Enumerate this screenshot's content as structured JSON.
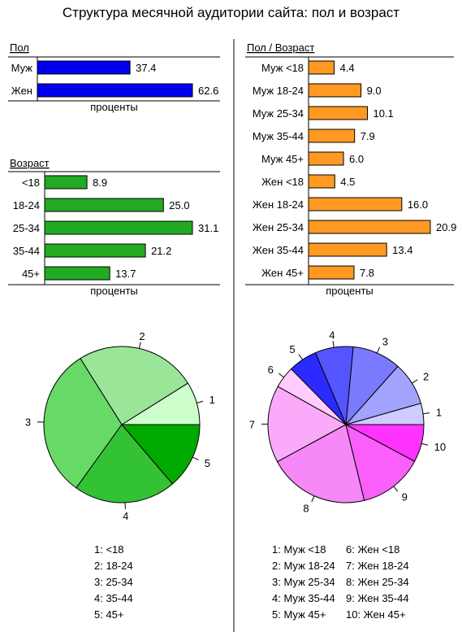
{
  "title": "Структура месячной аудитории сайта: пол и возраст",
  "axis_unit": "проценты",
  "colors": {
    "gender_bar": "#0000ee",
    "age_bar": "#22aa22",
    "gender_age_bar": "#ff9922",
    "age_pie": [
      "#ccffcc",
      "#99e699",
      "#66d966",
      "#33c233",
      "#00aa00"
    ],
    "gender_age_pie": [
      "#ccccff",
      "#a3a3ff",
      "#7a7aff",
      "#5555ff",
      "#2b2bff",
      "#ffccff",
      "#f9aaf9",
      "#f788f7",
      "#fb5ffb",
      "#ff33ff"
    ]
  },
  "chart_data": [
    {
      "type": "bar",
      "orientation": "horizontal",
      "title": "Пол",
      "xlabel": "проценты",
      "categories": [
        "Муж",
        "Жен"
      ],
      "values": [
        37.4,
        62.6
      ],
      "xlim": [
        0,
        62.6
      ]
    },
    {
      "type": "bar",
      "orientation": "horizontal",
      "title": "Возраст",
      "xlabel": "проценты",
      "categories": [
        "<18",
        "18-24",
        "25-34",
        "35-44",
        "45+"
      ],
      "values": [
        8.9,
        25.0,
        31.1,
        21.2,
        13.7
      ],
      "xlim": [
        0,
        31.1
      ]
    },
    {
      "type": "bar",
      "orientation": "horizontal",
      "title": "Пол / Возраст",
      "xlabel": "проценты",
      "categories": [
        "Муж <18",
        "Муж 18-24",
        "Муж 25-34",
        "Муж 35-44",
        "Муж 45+",
        "Жен <18",
        "Жен 18-24",
        "Жен 25-34",
        "Жен 35-44",
        "Жен 45+"
      ],
      "values": [
        4.4,
        9.0,
        10.1,
        7.9,
        6.0,
        4.5,
        16.0,
        20.9,
        13.4,
        7.8
      ],
      "xlim": [
        0,
        20.9
      ]
    },
    {
      "type": "pie",
      "labels": [
        "1",
        "2",
        "3",
        "4",
        "5"
      ],
      "values": [
        8.9,
        25.0,
        31.1,
        21.2,
        13.7
      ],
      "legend": [
        "1: <18",
        "2: 18-24",
        "3: 25-34",
        "4: 35-44",
        "5: 45+"
      ]
    },
    {
      "type": "pie",
      "labels": [
        "1",
        "2",
        "3",
        "4",
        "5",
        "6",
        "7",
        "8",
        "9",
        "10"
      ],
      "values": [
        4.4,
        9.0,
        10.1,
        7.9,
        6.0,
        4.5,
        16.0,
        20.9,
        13.4,
        7.8
      ],
      "legend": [
        "1: Муж <18",
        "2: Муж 18-24",
        "3: Муж 25-34",
        "4: Муж 35-44",
        "5: Муж 45+",
        "6: Жен <18",
        "7: Жен 18-24",
        "8: Жен 25-34",
        "9: Жен 35-44",
        "10: Жен 45+"
      ]
    }
  ]
}
